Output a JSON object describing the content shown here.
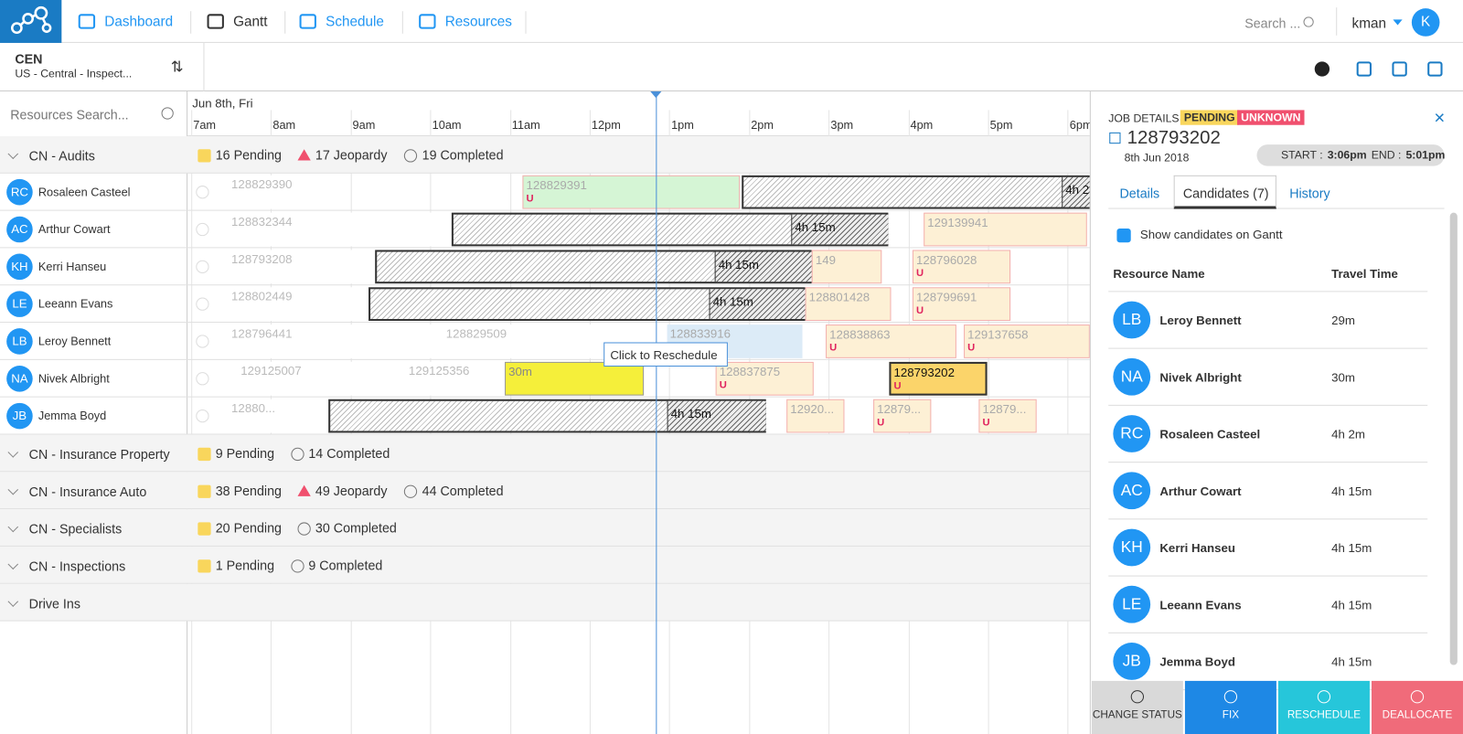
{
  "nav": {
    "items": [
      "Dashboard",
      "Gantt",
      "Schedule",
      "Resources"
    ],
    "search": "Search ...",
    "user": "kman",
    "avatar": "K"
  },
  "region": {
    "code": "CEN",
    "name": "US - Central - Inspect..."
  },
  "resource_search": "Resources Search...",
  "gantt": {
    "date": "Jun 8th, Fri",
    "hours": [
      "7am",
      "8am",
      "9am",
      "10am",
      "11am",
      "12pm",
      "1pm",
      "2pm",
      "3pm",
      "4pm",
      "5pm",
      "6pm"
    ],
    "tooltip": "Click to Reschedule",
    "groups": [
      {
        "name": "CN - Audits",
        "stats": {
          "pending": "16 Pending",
          "jeopardy": "17 Jeopardy",
          "completed": "19 Completed"
        },
        "resources": [
          {
            "initials": "RC",
            "name": "Rosaleen Casteel",
            "jobs": [
              {
                "label": "128829390",
                "style": "faint"
              },
              {
                "label": "128829391",
                "style": "green",
                "flag": "U"
              },
              {
                "label": "4h 2",
                "style": "hatched"
              }
            ]
          },
          {
            "initials": "AC",
            "name": "Arthur Cowart",
            "jobs": [
              {
                "label": "128832344",
                "style": "faint"
              },
              {
                "label": "4h 15m",
                "style": "hatched"
              },
              {
                "label": "129139941",
                "style": "cream"
              }
            ]
          },
          {
            "initials": "KH",
            "name": "Kerri Hanseu",
            "jobs": [
              {
                "label": "128793208",
                "style": "faint"
              },
              {
                "label": "4h 15m",
                "style": "hatched"
              },
              {
                "label": "149",
                "style": "cream"
              },
              {
                "label": "128796028",
                "style": "cream",
                "flag": "U"
              }
            ]
          },
          {
            "initials": "LE",
            "name": "Leeann Evans",
            "jobs": [
              {
                "label": "128802449",
                "style": "faint"
              },
              {
                "label": "4h 15m",
                "style": "hatched"
              },
              {
                "label": "128801428",
                "style": "cream"
              },
              {
                "label": "128799691",
                "style": "cream",
                "flag": "U"
              }
            ]
          },
          {
            "initials": "LB",
            "name": "Leroy Bennett",
            "jobs": [
              {
                "label": "128796441",
                "style": "faint"
              },
              {
                "label": "128829509",
                "style": "faint"
              },
              {
                "label": "128833916",
                "style": "blue"
              },
              {
                "label": "128838863",
                "style": "cream",
                "flag": "U"
              },
              {
                "label": "129137658",
                "style": "cream",
                "flag": "U"
              }
            ]
          },
          {
            "initials": "NA",
            "name": "Nivek Albright",
            "jobs": [
              {
                "label": "129125007",
                "style": "faint"
              },
              {
                "label": "129125356",
                "style": "faint"
              },
              {
                "label": "30m",
                "style": "yellow"
              },
              {
                "label": "128837875",
                "style": "cream",
                "flag": "U"
              },
              {
                "label": "128793202",
                "style": "gold",
                "flag": "U"
              }
            ]
          },
          {
            "initials": "JB",
            "name": "Jemma Boyd",
            "jobs": [
              {
                "label": "12880...",
                "style": "faint"
              },
              {
                "label": "4h 15m",
                "style": "hatched"
              },
              {
                "label": "12920...",
                "style": "cream"
              },
              {
                "label": "12879...",
                "style": "cream",
                "flag": "U"
              },
              {
                "label": "12879...",
                "style": "cream",
                "flag": "U"
              }
            ]
          }
        ]
      },
      {
        "name": "CN - Insurance Property",
        "stats": {
          "pending": "9 Pending",
          "completed": "14 Completed"
        },
        "resources": []
      },
      {
        "name": "CN - Insurance Auto",
        "stats": {
          "pending": "38 Pending",
          "jeopardy": "49 Jeopardy",
          "completed": "44 Completed"
        },
        "resources": []
      },
      {
        "name": "CN - Specialists",
        "stats": {
          "pending": "20 Pending",
          "completed": "30 Completed"
        },
        "resources": []
      },
      {
        "name": "CN - Inspections",
        "stats": {
          "pending": "1 Pending",
          "completed": "9 Completed"
        },
        "resources": []
      },
      {
        "name": "Drive Ins",
        "stats": {},
        "resources": []
      }
    ]
  },
  "job_details": {
    "heading": "JOB DETAILS",
    "badges": [
      "PENDING",
      "UNKNOWN"
    ],
    "id": "128793202",
    "date": "8th Jun 2018",
    "start_label": "START :",
    "start": "3:06pm",
    "end_label": "END :",
    "end": "5:01pm",
    "tabs": [
      "Details",
      "Candidates (7)",
      "History"
    ],
    "checkbox": "Show candidates on Gantt",
    "columns": [
      "Resource Name",
      "Travel Time"
    ],
    "candidates": [
      {
        "initials": "LB",
        "name": "Leroy Bennett",
        "time": "29m"
      },
      {
        "initials": "NA",
        "name": "Nivek Albright",
        "time": "30m"
      },
      {
        "initials": "RC",
        "name": "Rosaleen Casteel",
        "time": "4h 2m"
      },
      {
        "initials": "AC",
        "name": "Arthur Cowart",
        "time": "4h 15m"
      },
      {
        "initials": "KH",
        "name": "Kerri Hanseu",
        "time": "4h 15m"
      },
      {
        "initials": "LE",
        "name": "Leeann Evans",
        "time": "4h 15m"
      },
      {
        "initials": "JB",
        "name": "Jemma Boyd",
        "time": "4h 15m"
      }
    ],
    "buttons": [
      "CHANGE STATUS",
      "FIX",
      "RESCHEDULE",
      "DEALLOCATE"
    ]
  }
}
